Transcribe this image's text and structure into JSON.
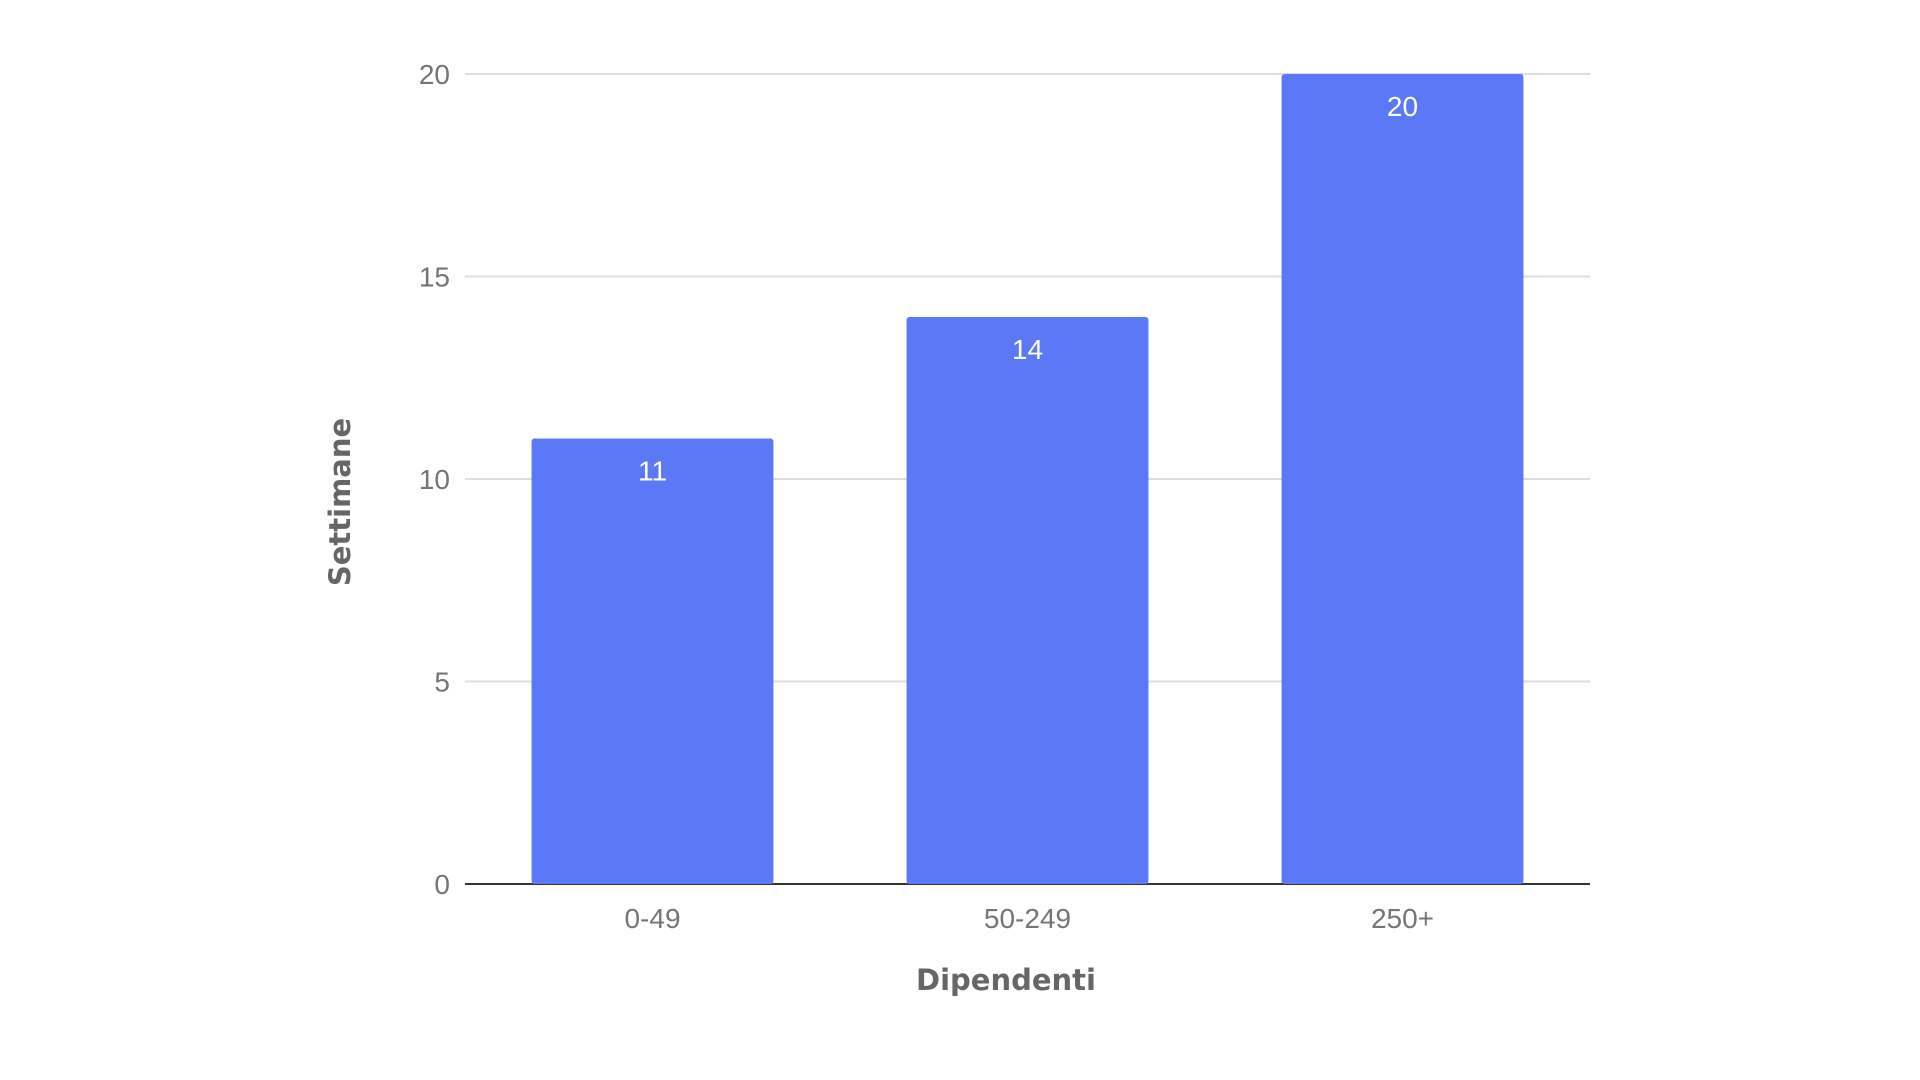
{
  "chart_data": {
    "type": "bar",
    "title": "",
    "xlabel": "Dipendenti",
    "ylabel": "Settimane",
    "categories": [
      "0-49",
      "50-249",
      "250+"
    ],
    "values": [
      11,
      14,
      20
    ],
    "data_labels": [
      "11",
      "14",
      "20"
    ],
    "ylim": [
      0,
      20
    ],
    "yticks": [
      0,
      5,
      10,
      15,
      20
    ],
    "grid": true,
    "legend": "none",
    "colors": {
      "bar": "#5b78f6",
      "grid": "#dddddd",
      "baseline": "#333333"
    }
  }
}
